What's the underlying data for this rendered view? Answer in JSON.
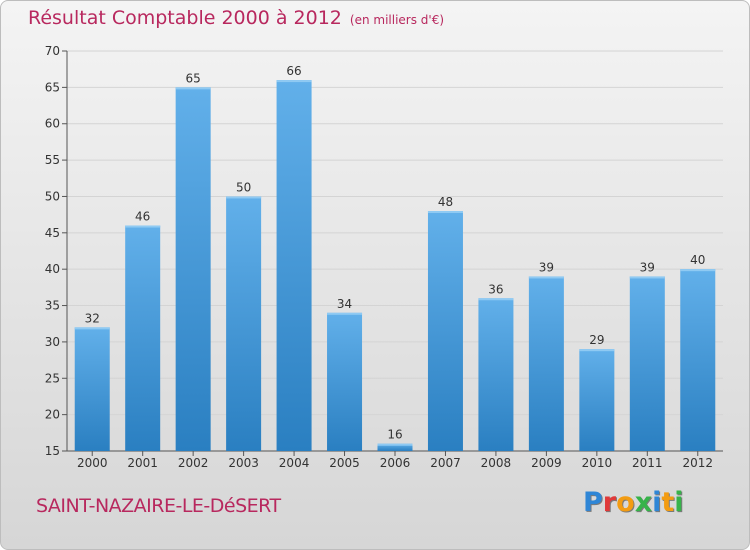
{
  "title": "Résultat Comptable 2000 à 2012",
  "subtitle": "(en milliers d'€)",
  "location": "SAINT-NAZAIRE-LE-DéSERT",
  "brand": {
    "letters": [
      "P",
      "r",
      "o",
      "x",
      "i",
      "t",
      "i"
    ],
    "colors": [
      "#2f86d6",
      "#e03a3a",
      "#f39c12",
      "#37b34a",
      "#2f86d6",
      "#f39c12",
      "#37b34a"
    ]
  },
  "colors": {
    "title": "#b8285e",
    "bar_top": "#62b0ea",
    "bar_bottom": "#2a7fc1",
    "grid": "#d4d4d4"
  },
  "chart_data": {
    "type": "bar",
    "title": "Résultat Comptable 2000 à 2012",
    "subtitle": "(en milliers d'€)",
    "categories": [
      "2000",
      "2001",
      "2002",
      "2003",
      "2004",
      "2005",
      "2006",
      "2007",
      "2008",
      "2009",
      "2010",
      "2011",
      "2012"
    ],
    "values": [
      32,
      46,
      65,
      50,
      66,
      34,
      16,
      48,
      36,
      39,
      29,
      39,
      40
    ],
    "ylim": [
      15,
      70
    ],
    "yticks": [
      "15",
      "20",
      "25",
      "30",
      "35",
      "40",
      "45",
      "50",
      "55",
      "60",
      "65",
      "70"
    ],
    "xlabel": "",
    "ylabel": "",
    "grid": true
  }
}
